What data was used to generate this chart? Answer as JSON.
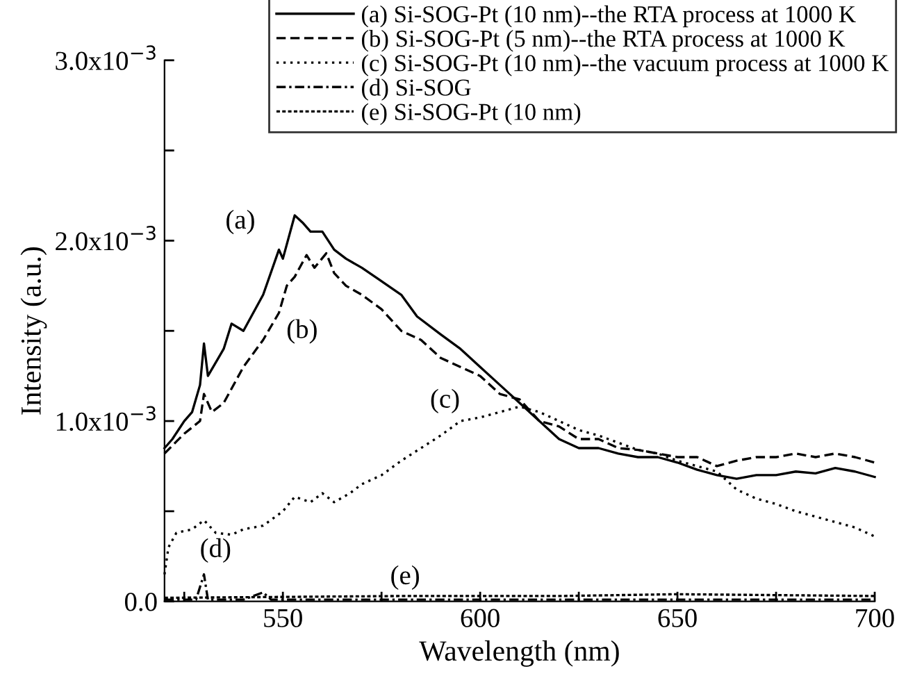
{
  "chart_data": {
    "type": "line",
    "xlabel": "Wavelength (nm)",
    "ylabel": "Intensity (a.u.)",
    "xlim": [
      520,
      700
    ],
    "ylim": [
      0,
      0.003
    ],
    "xticks": [
      {
        "value": 525,
        "label": null
      },
      550,
      {
        "value": 575,
        "label": null
      },
      600,
      {
        "value": 625,
        "label": null
      },
      650,
      {
        "value": 675,
        "label": null
      },
      700
    ],
    "yticks": [
      {
        "value": 0,
        "label": "0.0"
      },
      {
        "value": 0.0005,
        "label": null
      },
      {
        "value": 0.001,
        "label": "1.0x10$^{−3}$"
      },
      {
        "value": 0.0015,
        "label": null
      },
      {
        "value": 0.002,
        "label": "2.0x10$^{−3}$"
      },
      {
        "value": 0.0025,
        "label": null
      },
      {
        "value": 0.003,
        "label": "3.0x10$^{−3}$"
      }
    ],
    "grid": false,
    "legend": "top right",
    "marker": "none",
    "series": [
      {
        "name": "(a) Si-SOG-Pt (10 nm)--the RTA process at 1000 K",
        "color": "#000000",
        "line_style": "solid",
        "x": [
          520,
          522,
          525,
          527,
          529,
          530,
          531,
          535,
          537,
          540,
          545,
          549,
          550,
          553,
          555,
          557,
          560,
          563,
          566,
          570,
          574,
          580,
          584,
          590,
          595,
          600,
          605,
          610,
          615,
          620,
          625,
          630,
          635,
          640,
          645,
          650,
          655,
          660,
          665,
          670,
          675,
          680,
          685,
          690,
          695,
          700
        ],
        "values": [
          0.00085,
          0.0009,
          0.001,
          0.00105,
          0.0012,
          0.00143,
          0.00125,
          0.0014,
          0.00154,
          0.0015,
          0.0017,
          0.00195,
          0.0019,
          0.00214,
          0.0021,
          0.00205,
          0.00205,
          0.00195,
          0.0019,
          0.00185,
          0.00179,
          0.0017,
          0.00158,
          0.00148,
          0.0014,
          0.0013,
          0.0012,
          0.0011,
          0.001,
          0.0009,
          0.00085,
          0.00085,
          0.00082,
          0.0008,
          0.0008,
          0.00077,
          0.00073,
          0.0007,
          0.00068,
          0.0007,
          0.0007,
          0.00072,
          0.00071,
          0.00074,
          0.00072,
          0.00069
        ]
      },
      {
        "name": "(b) Si-SOG-Pt (5 nm)--the RTA process at 1000 K",
        "color": "#000000",
        "line_style": "dashed",
        "x": [
          520,
          525,
          529,
          530,
          532,
          535,
          540,
          545,
          549,
          551,
          553,
          556,
          558,
          561,
          563,
          566,
          570,
          575,
          580,
          585,
          590,
          595,
          600,
          605,
          610,
          615,
          620,
          625,
          630,
          635,
          640,
          645,
          650,
          655,
          660,
          665,
          670,
          675,
          680,
          685,
          690,
          695,
          700
        ],
        "values": [
          0.00082,
          0.00093,
          0.001,
          0.00115,
          0.00105,
          0.0011,
          0.0013,
          0.00145,
          0.0016,
          0.00175,
          0.0018,
          0.00192,
          0.00185,
          0.00193,
          0.00182,
          0.00175,
          0.0017,
          0.00162,
          0.0015,
          0.00145,
          0.00135,
          0.0013,
          0.00125,
          0.00115,
          0.00112,
          0.001,
          0.00097,
          0.0009,
          0.0009,
          0.00085,
          0.00084,
          0.00082,
          0.0008,
          0.0008,
          0.00075,
          0.00078,
          0.0008,
          0.0008,
          0.00082,
          0.0008,
          0.00082,
          0.0008,
          0.00077
        ]
      },
      {
        "name": "(c) Si-SOG-Pt (10 nm)--the vacuum process at 1000 K",
        "color": "#000000",
        "line_style": "dotted",
        "x": [
          520,
          521,
          523,
          527,
          530,
          533,
          537,
          540,
          545,
          550,
          553,
          557,
          560,
          563,
          567,
          570,
          575,
          580,
          585,
          590,
          595,
          600,
          605,
          610,
          615,
          620,
          625,
          630,
          635,
          640,
          645,
          650,
          655,
          660,
          665,
          670,
          675,
          680,
          685,
          690,
          695,
          700
        ],
        "values": [
          0.00015,
          0.0003,
          0.00038,
          0.0004,
          0.00045,
          0.00038,
          0.00037,
          0.0004,
          0.00042,
          0.0005,
          0.00058,
          0.00055,
          0.0006,
          0.00055,
          0.0006,
          0.00065,
          0.0007,
          0.00078,
          0.00085,
          0.00092,
          0.001,
          0.00102,
          0.00105,
          0.00108,
          0.00105,
          0.001,
          0.00095,
          0.00092,
          0.00088,
          0.00084,
          0.00082,
          0.00078,
          0.00075,
          0.00072,
          0.00062,
          0.00057,
          0.00054,
          0.0005,
          0.00047,
          0.00044,
          0.00041,
          0.00036
        ]
      },
      {
        "name": "(d) Si-SOG",
        "color": "#000000",
        "line_style": "dashdot",
        "x": [
          520,
          528,
          530,
          531,
          540,
          545,
          547,
          600,
          700
        ],
        "values": [
          1e-05,
          1e-05,
          0.00015,
          1e-05,
          1e-05,
          5e-05,
          1e-05,
          1e-05,
          1e-05
        ]
      },
      {
        "name": "(e) Si-SOG-Pt (10 nm)",
        "color": "#000000",
        "line_style": "densedot",
        "x": [
          520,
          580,
          620,
          650,
          700
        ],
        "values": [
          2e-05,
          3e-05,
          3e-05,
          4e-05,
          3e-05
        ]
      }
    ],
    "annotations": [
      {
        "text": "(a)",
        "x": 549,
        "y": 0.00195
      },
      {
        "text": "(b)",
        "x": 549,
        "y": 0.0016
      },
      {
        "text": "(c)",
        "x": 595,
        "y": 0.001
      },
      {
        "text": "(d)",
        "x": 530,
        "y": 0.00015
      },
      {
        "text": "(e)",
        "x": 580,
        "y": 0
      }
    ]
  }
}
